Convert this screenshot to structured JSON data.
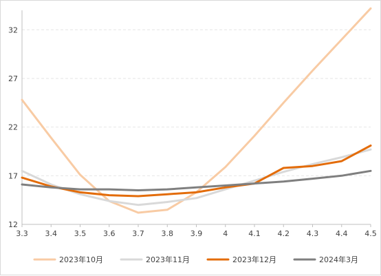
{
  "chart_data": {
    "type": "line",
    "x": [
      3.3,
      3.4,
      3.5,
      3.6,
      3.7,
      3.8,
      3.9,
      4.0,
      4.1,
      4.2,
      4.3,
      4.4,
      4.5
    ],
    "x_tick_labels": [
      "3.3",
      "3.4",
      "3.5",
      "3.6",
      "3.7",
      "3.8",
      "3.9",
      "4",
      "4.1",
      "4.2",
      "4.3",
      "4.4",
      "4.5"
    ],
    "y_ticks": [
      12,
      17,
      22,
      27,
      32
    ],
    "ylim": [
      12,
      34
    ],
    "xlim": [
      3.3,
      4.5
    ],
    "grid": "horizontal dashed",
    "legend_position": "bottom",
    "series": [
      {
        "name": "2023年10月",
        "color": "#f8cba4",
        "values": [
          24.8,
          20.9,
          17.1,
          14.4,
          13.2,
          13.5,
          15.3,
          17.9,
          21.1,
          24.5,
          27.8,
          31.0,
          34.2
        ]
      },
      {
        "name": "2023年11月",
        "color": "#d9d9d9",
        "values": [
          17.5,
          16.1,
          15.1,
          14.4,
          14.0,
          14.3,
          14.7,
          15.6,
          16.5,
          17.4,
          18.2,
          18.9,
          19.7
        ]
      },
      {
        "name": "2023年12月",
        "color": "#e36c0a",
        "values": [
          16.8,
          15.9,
          15.3,
          15.0,
          14.9,
          15.1,
          15.3,
          15.8,
          16.2,
          17.8,
          18.0,
          18.5,
          20.1
        ]
      },
      {
        "name": "2024年3月",
        "color": "#7f7f7f",
        "values": [
          16.1,
          15.8,
          15.6,
          15.6,
          15.5,
          15.6,
          15.8,
          16.0,
          16.2,
          16.4,
          16.7,
          17.0,
          17.5
        ]
      }
    ]
  }
}
